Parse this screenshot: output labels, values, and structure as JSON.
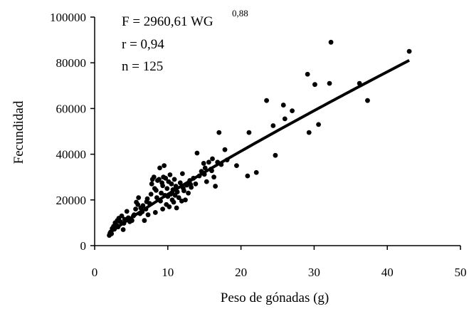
{
  "chart_data": {
    "type": "scatter",
    "title": "",
    "xlabel": "Peso de gónadas (g)",
    "ylabel": "Fecundidad",
    "xlim": [
      0,
      50
    ],
    "ylim": [
      0,
      100000
    ],
    "x_ticks": [
      "0",
      "10",
      "20",
      "30",
      "40",
      "50"
    ],
    "y_ticks": [
      "0",
      "20000",
      "40000",
      "60000",
      "80000",
      "100000"
    ],
    "grid": false,
    "annotations": {
      "equation_main": "F = 2960,61 WG",
      "equation_exponent": "0,88",
      "r": "r = 0,94",
      "n": "n = 125"
    },
    "fit_line": {
      "a": 2960.61,
      "b": 0.88,
      "x_start": 2,
      "x_end": 43
    },
    "points": [
      [
        2.0,
        4500
      ],
      [
        2.1,
        5500
      ],
      [
        2.2,
        6000
      ],
      [
        2.4,
        7500
      ],
      [
        2.6,
        8500
      ],
      [
        2.8,
        10000
      ],
      [
        3.0,
        9000
      ],
      [
        3.1,
        11000
      ],
      [
        3.3,
        12000
      ],
      [
        3.5,
        10500
      ],
      [
        3.7,
        13000
      ],
      [
        3.9,
        7000
      ],
      [
        4.1,
        11500
      ],
      [
        4.4,
        15000
      ],
      [
        4.8,
        10500
      ],
      [
        5.1,
        11000
      ],
      [
        5.4,
        13500
      ],
      [
        5.6,
        16000
      ],
      [
        5.7,
        19000
      ],
      [
        5.9,
        18000
      ],
      [
        6.0,
        21000
      ],
      [
        6.2,
        14000
      ],
      [
        6.3,
        16500
      ],
      [
        6.6,
        17500
      ],
      [
        6.8,
        11000
      ],
      [
        7.0,
        16000
      ],
      [
        7.2,
        20500
      ],
      [
        7.3,
        13500
      ],
      [
        7.5,
        18500
      ],
      [
        7.7,
        22500
      ],
      [
        7.8,
        27000
      ],
      [
        7.9,
        29000
      ],
      [
        8.1,
        30000
      ],
      [
        8.2,
        25000
      ],
      [
        8.3,
        14500
      ],
      [
        8.5,
        21000
      ],
      [
        8.6,
        28500
      ],
      [
        8.8,
        29000
      ],
      [
        8.9,
        34000
      ],
      [
        9.0,
        19500
      ],
      [
        9.1,
        23000
      ],
      [
        9.2,
        27500
      ],
      [
        9.3,
        16000
      ],
      [
        9.4,
        30000
      ],
      [
        9.5,
        35000
      ],
      [
        9.6,
        22000
      ],
      [
        9.7,
        29500
      ],
      [
        9.8,
        18000
      ],
      [
        9.9,
        25000
      ],
      [
        10.0,
        21500
      ],
      [
        10.1,
        28000
      ],
      [
        10.2,
        17000
      ],
      [
        10.3,
        31000
      ],
      [
        10.4,
        22500
      ],
      [
        10.5,
        27000
      ],
      [
        10.6,
        20000
      ],
      [
        10.7,
        24500
      ],
      [
        10.8,
        19000
      ],
      [
        10.9,
        29000
      ],
      [
        11.0,
        22000
      ],
      [
        11.1,
        26000
      ],
      [
        11.2,
        16500
      ],
      [
        11.3,
        23500
      ],
      [
        11.5,
        21000
      ],
      [
        11.7,
        27500
      ],
      [
        11.9,
        19500
      ],
      [
        12.0,
        31500
      ],
      [
        12.2,
        24000
      ],
      [
        12.4,
        20000
      ],
      [
        12.6,
        26500
      ],
      [
        12.8,
        23000
      ],
      [
        13.0,
        28500
      ],
      [
        13.2,
        25500
      ],
      [
        13.5,
        29500
      ],
      [
        13.8,
        27000
      ],
      [
        14.0,
        40500
      ],
      [
        14.3,
        30500
      ],
      [
        14.6,
        32500
      ],
      [
        14.9,
        36000
      ],
      [
        15.1,
        34000
      ],
      [
        15.3,
        28000
      ],
      [
        15.6,
        36500
      ],
      [
        15.9,
        33500
      ],
      [
        16.1,
        38000
      ],
      [
        16.3,
        30000
      ],
      [
        16.5,
        26000
      ],
      [
        16.8,
        36500
      ],
      [
        17.0,
        49500
      ],
      [
        17.3,
        35500
      ],
      [
        17.8,
        42000
      ],
      [
        18.1,
        37500
      ],
      [
        19.4,
        35000
      ],
      [
        20.9,
        30500
      ],
      [
        21.1,
        49500
      ],
      [
        22.1,
        32000
      ],
      [
        23.5,
        63500
      ],
      [
        24.4,
        52500
      ],
      [
        24.7,
        39500
      ],
      [
        25.8,
        61500
      ],
      [
        26.0,
        55500
      ],
      [
        27.0,
        59000
      ],
      [
        29.1,
        75000
      ],
      [
        29.3,
        49500
      ],
      [
        30.1,
        70500
      ],
      [
        30.6,
        53000
      ],
      [
        32.1,
        71000
      ],
      [
        32.3,
        89000
      ],
      [
        36.2,
        71000
      ],
      [
        37.3,
        63500
      ],
      [
        43.0,
        85000
      ],
      [
        2.3,
        5200
      ],
      [
        2.7,
        7200
      ],
      [
        3.2,
        8200
      ],
      [
        4.0,
        9800
      ],
      [
        4.6,
        12200
      ],
      [
        5.3,
        13000
      ],
      [
        6.5,
        14800
      ],
      [
        7.1,
        19200
      ],
      [
        8.4,
        24200
      ],
      [
        9.3,
        26200
      ],
      [
        10.6,
        23200
      ],
      [
        12.1,
        25200
      ],
      [
        13.1,
        26800
      ],
      [
        15.0,
        31200
      ],
      [
        16.0,
        32800
      ]
    ]
  }
}
